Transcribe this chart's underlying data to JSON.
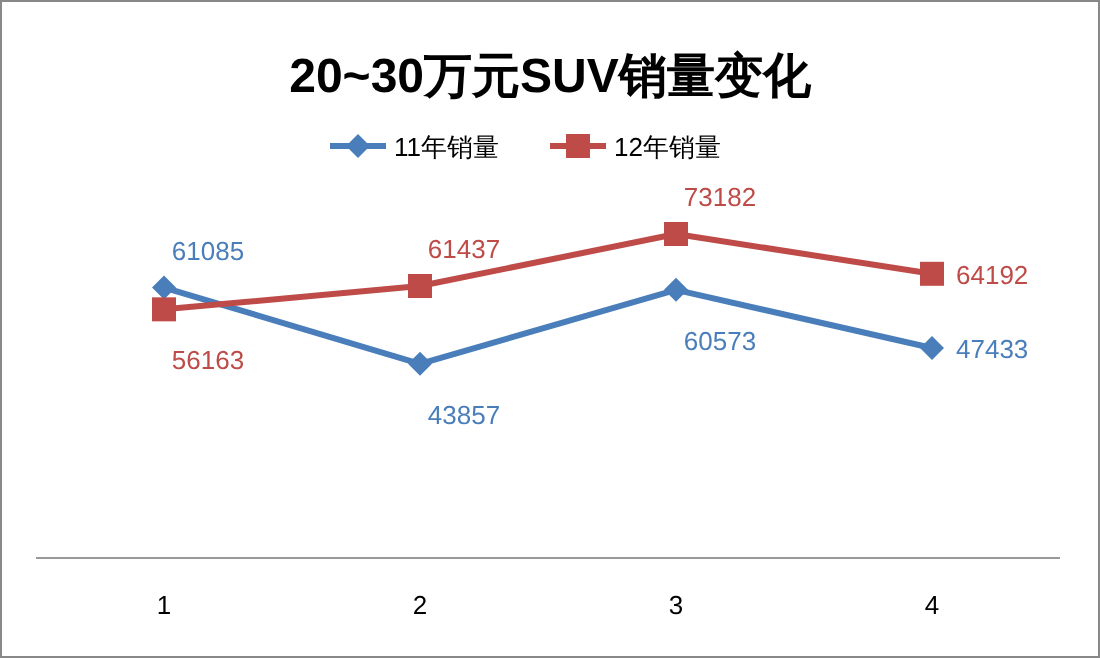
{
  "chart_data": {
    "type": "line",
    "title": "20~30万元SUV销量变化",
    "categories": [
      "1",
      "2",
      "3",
      "4"
    ],
    "series": [
      {
        "name": "11年销量",
        "color": "#4a7ebb",
        "values": [
          61085,
          43857,
          60573,
          47433
        ],
        "marker": "diamond"
      },
      {
        "name": "12年销量",
        "color": "#be4b48",
        "values": [
          56163,
          61437,
          73182,
          64192
        ],
        "marker": "square"
      }
    ],
    "tick_labels": "x",
    "data_labels": true,
    "legend": "top"
  }
}
